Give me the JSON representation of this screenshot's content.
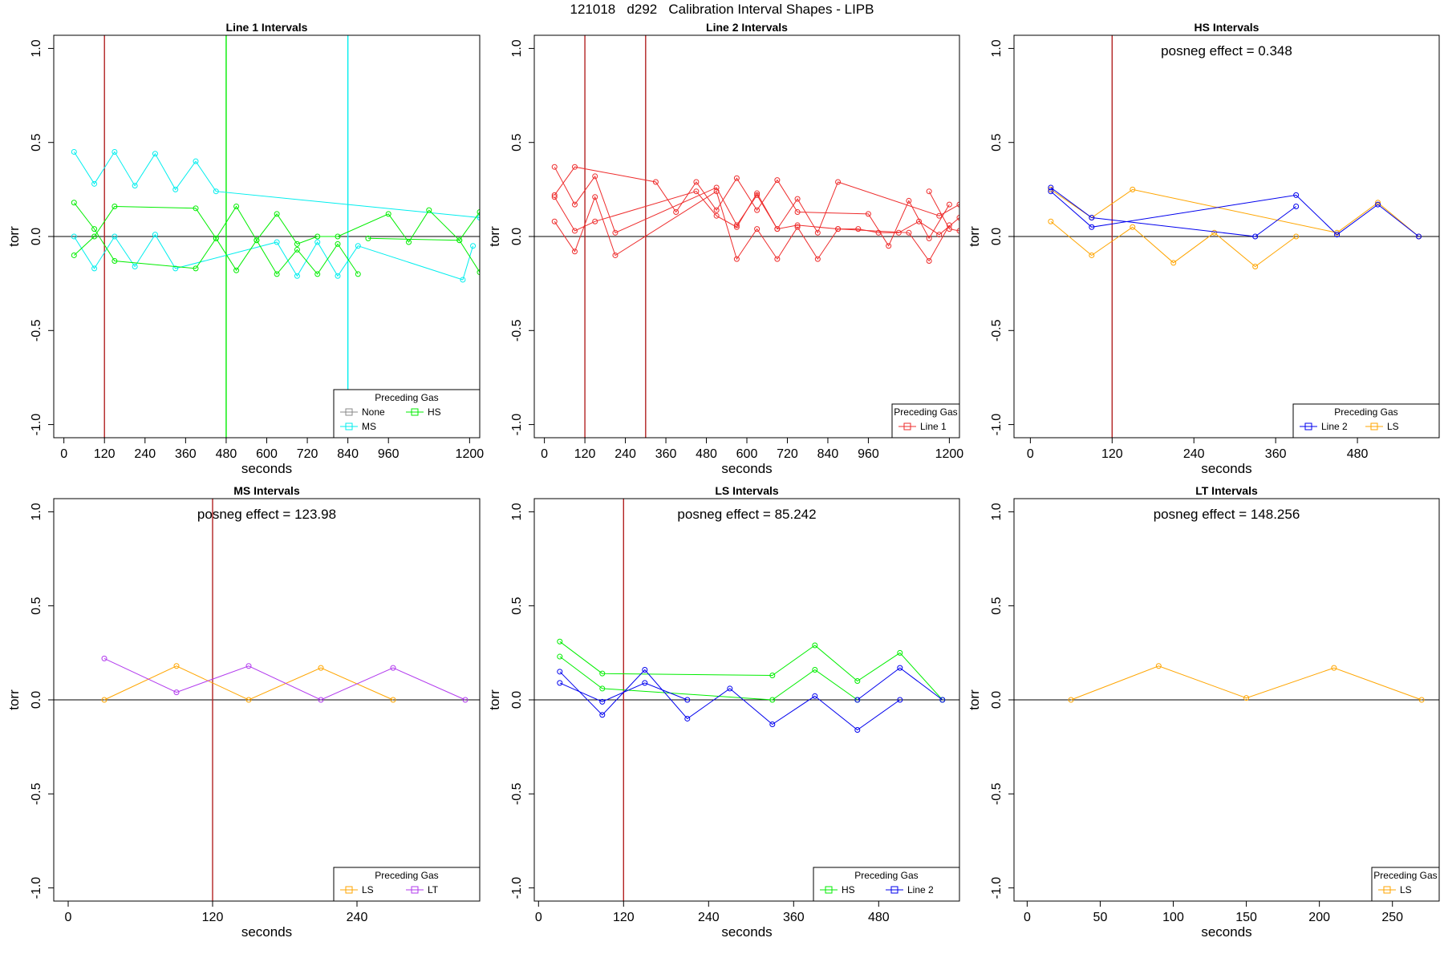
{
  "page_title": "121018   d292   Calibration Interval Shapes - LIPB",
  "chart_data": [
    {
      "type": "line",
      "title": "Line 1 Intervals",
      "xlabel": "seconds",
      "ylabel": "torr",
      "xlim": [
        -30,
        1230
      ],
      "ylim": [
        -1.07,
        1.07
      ],
      "xticks": [
        0,
        120,
        240,
        360,
        480,
        600,
        720,
        840,
        960,
        1200
      ],
      "yticks": [
        -1.0,
        -0.5,
        0.0,
        0.5,
        1.0
      ],
      "ytick_labels": [
        "-1.0",
        "-0.5",
        "0.0",
        "0.5",
        "1.0"
      ],
      "annotation": "",
      "vlines": [
        {
          "x": 120,
          "color": "#b22222"
        },
        {
          "x": 480,
          "color": "#00ee00"
        },
        {
          "x": 840,
          "color": "#00eeee"
        }
      ],
      "legend": {
        "title": "Preceding Gas",
        "position": "bottom-right",
        "entries": [
          {
            "name": "None",
            "color": "#888888"
          },
          {
            "name": "HS",
            "color": "#00ee00"
          },
          {
            "name": "MS",
            "color": "#00eeee"
          }
        ]
      },
      "series": [
        {
          "name": "MS",
          "color": "#00eeee",
          "x": [
            30,
            90,
            150,
            210,
            270,
            330,
            390,
            450,
            1230
          ],
          "y": [
            0.45,
            0.28,
            0.45,
            0.27,
            0.44,
            0.25,
            0.4,
            0.24,
            0.1
          ]
        },
        {
          "name": "MS",
          "color": "#00eeee",
          "x": [
            30,
            90,
            150,
            210,
            270,
            330,
            630,
            690,
            750,
            810,
            870,
            1180,
            1210
          ],
          "y": [
            0.0,
            -0.17,
            0.0,
            -0.16,
            0.01,
            -0.17,
            -0.03,
            -0.21,
            -0.03,
            -0.21,
            -0.05,
            -0.23,
            -0.05
          ]
        },
        {
          "name": "HS",
          "color": "#00ee00",
          "x": [
            30,
            90,
            150,
            390,
            450,
            510,
            570,
            630,
            690,
            750,
            810,
            870
          ],
          "y": [
            0.18,
            0.04,
            -0.13,
            -0.17,
            -0.01,
            -0.18,
            -0.02,
            -0.2,
            -0.07,
            -0.2,
            -0.04,
            -0.2
          ]
        },
        {
          "name": "HS",
          "color": "#00ee00",
          "x": [
            30,
            90,
            150,
            390,
            450,
            510,
            570,
            630,
            690,
            750,
            810,
            960,
            1020,
            1080,
            1170,
            1230
          ],
          "y": [
            -0.1,
            0.0,
            0.16,
            0.15,
            -0.01,
            0.16,
            -0.02,
            0.12,
            -0.04,
            0.0,
            0.0,
            0.12,
            -0.03,
            0.14,
            -0.02,
            0.13
          ]
        },
        {
          "name": "HS",
          "color": "#00ee00",
          "x": [
            900,
            1170,
            1230
          ],
          "y": [
            -0.01,
            -0.02,
            -0.19
          ]
        }
      ]
    },
    {
      "type": "line",
      "title": "Line 2 Intervals",
      "xlabel": "seconds",
      "ylabel": "torr",
      "xlim": [
        -30,
        1230
      ],
      "ylim": [
        -1.07,
        1.07
      ],
      "xticks": [
        0,
        120,
        240,
        360,
        480,
        600,
        720,
        840,
        960,
        1200
      ],
      "yticks": [
        -1.0,
        -0.5,
        0.0,
        0.5,
        1.0
      ],
      "ytick_labels": [
        "-1.0",
        "-0.5",
        "0.0",
        "0.5",
        "1.0"
      ],
      "annotation": "",
      "vlines": [
        {
          "x": 120,
          "color": "#b22222"
        },
        {
          "x": 300,
          "color": "#b22222"
        }
      ],
      "legend": {
        "title": "Preceding Gas",
        "position": "bottom-right",
        "entries": [
          {
            "name": "Line 1",
            "color": "#ee2c2c"
          }
        ]
      },
      "series": [
        {
          "name": "Line 1",
          "color": "#ee2c2c",
          "x": [
            30,
            90,
            150,
            210,
            510,
            570,
            630,
            690,
            750,
            810,
            870,
            1170,
            1230
          ],
          "y": [
            0.37,
            0.17,
            0.32,
            0.02,
            0.26,
            0.06,
            0.22,
            0.04,
            0.2,
            0.02,
            0.29,
            0.11,
            0.17
          ]
        },
        {
          "name": "Line 1",
          "color": "#ee2c2c",
          "x": [
            30,
            90,
            330,
            390,
            450,
            510,
            570,
            630,
            690,
            750,
            960,
            1020,
            1080,
            1140,
            1200
          ],
          "y": [
            0.22,
            0.37,
            0.29,
            0.13,
            0.29,
            0.14,
            0.31,
            0.14,
            0.3,
            0.13,
            0.12,
            -0.05,
            0.19,
            -0.01,
            0.17
          ]
        },
        {
          "name": "Line 1",
          "color": "#ee2c2c",
          "x": [
            30,
            90,
            150,
            210,
            510,
            570,
            630,
            690,
            750,
            810,
            870,
            1080,
            1140,
            1200
          ],
          "y": [
            0.08,
            -0.08,
            0.21,
            -0.1,
            0.24,
            -0.12,
            0.04,
            -0.12,
            0.05,
            -0.12,
            0.04,
            0.02,
            -0.13,
            0.06
          ]
        },
        {
          "name": "Line 1",
          "color": "#ee2c2c",
          "x": [
            30,
            90,
            150,
            450,
            510,
            570,
            630,
            690,
            750,
            870,
            930,
            990,
            1050,
            1110,
            1170,
            1230
          ],
          "y": [
            0.21,
            0.03,
            0.08,
            0.24,
            0.11,
            0.05,
            0.23,
            0.04,
            0.06,
            0.04,
            0.04,
            0.02,
            0.02,
            0.08,
            0.01,
            0.1
          ]
        },
        {
          "name": "Line 1",
          "color": "#ee2c2c",
          "x": [
            1140,
            1200,
            1230
          ],
          "y": [
            0.24,
            0.04,
            0.03
          ]
        }
      ]
    },
    {
      "type": "line",
      "title": "HS Intervals",
      "xlabel": "seconds",
      "ylabel": "torr",
      "xlim": [
        -24,
        600
      ],
      "ylim": [
        -1.07,
        1.07
      ],
      "xticks": [
        0,
        120,
        240,
        360,
        480
      ],
      "yticks": [
        -1.0,
        -0.5,
        0.0,
        0.5,
        1.0
      ],
      "ytick_labels": [
        "-1.0",
        "-0.5",
        "0.0",
        "0.5",
        "1.0"
      ],
      "annotation": "posneg effect = 0.348",
      "vlines": [
        {
          "x": 120,
          "color": "#b22222"
        }
      ],
      "legend": {
        "title": "Preceding Gas",
        "position": "bottom-right",
        "entries": [
          {
            "name": "Line 2",
            "color": "#0000ee"
          },
          {
            "name": "LS",
            "color": "#ffa500"
          }
        ]
      },
      "series": [
        {
          "name": "LS",
          "color": "#ffa500",
          "x": [
            30,
            90,
            150,
            210,
            270,
            330,
            390
          ],
          "y": [
            0.08,
            -0.1,
            0.05,
            -0.14,
            0.02,
            -0.16,
            0.0
          ]
        },
        {
          "name": "LS",
          "color": "#ffa500",
          "x": [
            30,
            90,
            150,
            450,
            510,
            570
          ],
          "y": [
            0.25,
            0.1,
            0.25,
            0.02,
            0.18,
            0.0
          ]
        },
        {
          "name": "Line 2",
          "color": "#0000ee",
          "x": [
            30,
            90,
            390,
            450,
            510,
            570
          ],
          "y": [
            0.24,
            0.05,
            0.22,
            0.01,
            0.17,
            0.0
          ]
        },
        {
          "name": "Line 2",
          "color": "#0000ee",
          "x": [
            30,
            90,
            330,
            390
          ],
          "y": [
            0.26,
            0.1,
            0.0,
            0.16
          ]
        }
      ]
    },
    {
      "type": "line",
      "title": "MS Intervals",
      "xlabel": "seconds",
      "ylabel": "torr",
      "xlim": [
        -12,
        342
      ],
      "ylim": [
        -1.07,
        1.07
      ],
      "xticks": [
        0,
        120,
        240
      ],
      "yticks": [
        -1.0,
        -0.5,
        0.0,
        0.5,
        1.0
      ],
      "ytick_labels": [
        "-1.0",
        "-0.5",
        "0.0",
        "0.5",
        "1.0"
      ],
      "annotation": "posneg effect = 123.98",
      "vlines": [
        {
          "x": 120,
          "color": "#b22222"
        }
      ],
      "legend": {
        "title": "Preceding Gas",
        "position": "bottom-right",
        "entries": [
          {
            "name": "LS",
            "color": "#ffa500"
          },
          {
            "name": "LT",
            "color": "#b23aee"
          }
        ]
      },
      "series": [
        {
          "name": "LS",
          "color": "#ffa500",
          "x": [
            30,
            90,
            150,
            210,
            270
          ],
          "y": [
            0.0,
            0.18,
            0.0,
            0.17,
            0.0
          ]
        },
        {
          "name": "LT",
          "color": "#b23aee",
          "x": [
            30,
            90,
            150,
            210,
            270,
            330
          ],
          "y": [
            0.22,
            0.04,
            0.18,
            0.0,
            0.17,
            0.0
          ]
        }
      ]
    },
    {
      "type": "line",
      "title": "LS Intervals",
      "xlabel": "seconds",
      "ylabel": "torr",
      "xlim": [
        -6,
        594
      ],
      "ylim": [
        -1.07,
        1.07
      ],
      "xticks": [
        0,
        120,
        240,
        360,
        480
      ],
      "yticks": [
        -1.0,
        -0.5,
        0.0,
        0.5,
        1.0
      ],
      "ytick_labels": [
        "-1.0",
        "-0.5",
        "0.0",
        "0.5",
        "1.0"
      ],
      "annotation": "posneg effect = 85.242",
      "vlines": [
        {
          "x": 120,
          "color": "#b22222"
        }
      ],
      "legend": {
        "title": "Preceding Gas",
        "position": "bottom-right",
        "entries": [
          {
            "name": "HS",
            "color": "#00ee00"
          },
          {
            "name": "Line 2",
            "color": "#0000ee"
          }
        ]
      },
      "series": [
        {
          "name": "HS",
          "color": "#00ee00",
          "x": [
            30,
            90,
            330,
            390,
            450,
            510,
            570
          ],
          "y": [
            0.31,
            0.14,
            0.13,
            0.29,
            0.1,
            0.25,
            0.0
          ]
        },
        {
          "name": "HS",
          "color": "#00ee00",
          "x": [
            30,
            90,
            330,
            390,
            450
          ],
          "y": [
            0.23,
            0.06,
            0.0,
            0.16,
            0.0
          ]
        },
        {
          "name": "Line 2",
          "color": "#0000ee",
          "x": [
            30,
            90,
            150,
            210,
            270,
            330,
            390,
            450,
            510
          ],
          "y": [
            0.15,
            -0.08,
            0.16,
            -0.1,
            0.06,
            -0.13,
            0.02,
            -0.16,
            0.0
          ]
        },
        {
          "name": "Line 2",
          "color": "#0000ee",
          "x": [
            30,
            90,
            150,
            210
          ],
          "y": [
            0.09,
            -0.01,
            0.09,
            0.0
          ]
        },
        {
          "name": "Line 2",
          "color": "#0000ee",
          "x": [
            450,
            510,
            570
          ],
          "y": [
            0.0,
            0.17,
            0.0
          ]
        }
      ]
    },
    {
      "type": "line",
      "title": "LT Intervals",
      "xlabel": "seconds",
      "ylabel": "torr",
      "xlim": [
        -9,
        282
      ],
      "ylim": [
        -1.07,
        1.07
      ],
      "xticks": [
        0,
        50,
        100,
        150,
        200,
        250
      ],
      "yticks": [
        -1.0,
        -0.5,
        0.0,
        0.5,
        1.0
      ],
      "ytick_labels": [
        "-1.0",
        "-0.5",
        "0.0",
        "0.5",
        "1.0"
      ],
      "annotation": "posneg effect = 148.256",
      "vlines": [],
      "legend": {
        "title": "Preceding Gas",
        "position": "bottom-right",
        "entries": [
          {
            "name": "LS",
            "color": "#ffa500"
          }
        ]
      },
      "series": [
        {
          "name": "LS",
          "color": "#ffa500",
          "x": [
            30,
            90,
            150,
            210,
            270
          ],
          "y": [
            0.0,
            0.18,
            0.01,
            0.17,
            0.0
          ]
        }
      ]
    }
  ]
}
